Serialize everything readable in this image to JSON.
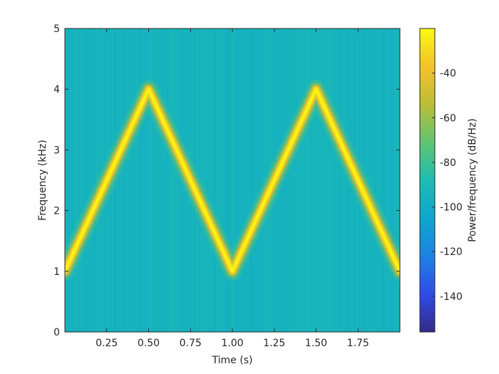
{
  "chart_data": {
    "type": "heatmap",
    "subtype": "spectrogram",
    "title": "",
    "xlabel": "Time (s)",
    "ylabel": "Frequency (kHz)",
    "colorbar_label": "Power/frequency (dB/Hz)",
    "xlim": [
      0,
      2
    ],
    "ylim": [
      0,
      5
    ],
    "clim": [
      -156,
      -20
    ],
    "x_ticks": [
      {
        "value": 0.25,
        "label": "0.25"
      },
      {
        "value": 0.5,
        "label": "0.50"
      },
      {
        "value": 0.75,
        "label": "0.75"
      },
      {
        "value": 1.0,
        "label": "1.00"
      },
      {
        "value": 1.25,
        "label": "1.25"
      },
      {
        "value": 1.5,
        "label": "1.50"
      },
      {
        "value": 1.75,
        "label": "1.75"
      }
    ],
    "y_ticks": [
      {
        "value": 0,
        "label": "0"
      },
      {
        "value": 1,
        "label": "1"
      },
      {
        "value": 2,
        "label": "2"
      },
      {
        "value": 3,
        "label": "3"
      },
      {
        "value": 4,
        "label": "4"
      },
      {
        "value": 5,
        "label": "5"
      }
    ],
    "colorbar_ticks": [
      {
        "value": -40,
        "label": "-40"
      },
      {
        "value": -60,
        "label": "-60"
      },
      {
        "value": -80,
        "label": "-80"
      },
      {
        "value": -100,
        "label": "-100"
      },
      {
        "value": -120,
        "label": "-120"
      },
      {
        "value": -140,
        "label": "-140"
      }
    ],
    "background_level_db": -95,
    "peak_level_db": -22,
    "ridge": {
      "description": "triangular frequency sweep",
      "time_s": [
        0,
        0.5,
        1.0,
        1.5,
        2.0
      ],
      "frequency_khz": [
        1,
        4,
        1,
        4,
        1
      ]
    },
    "colormap": "parula",
    "colormap_stops": [
      "#352a87",
      "#2f4ce6",
      "#1e82e2",
      "#0fa6cf",
      "#1fbcb1",
      "#5fc572",
      "#bcbd38",
      "#f4c22c",
      "#f9fb0e"
    ]
  }
}
